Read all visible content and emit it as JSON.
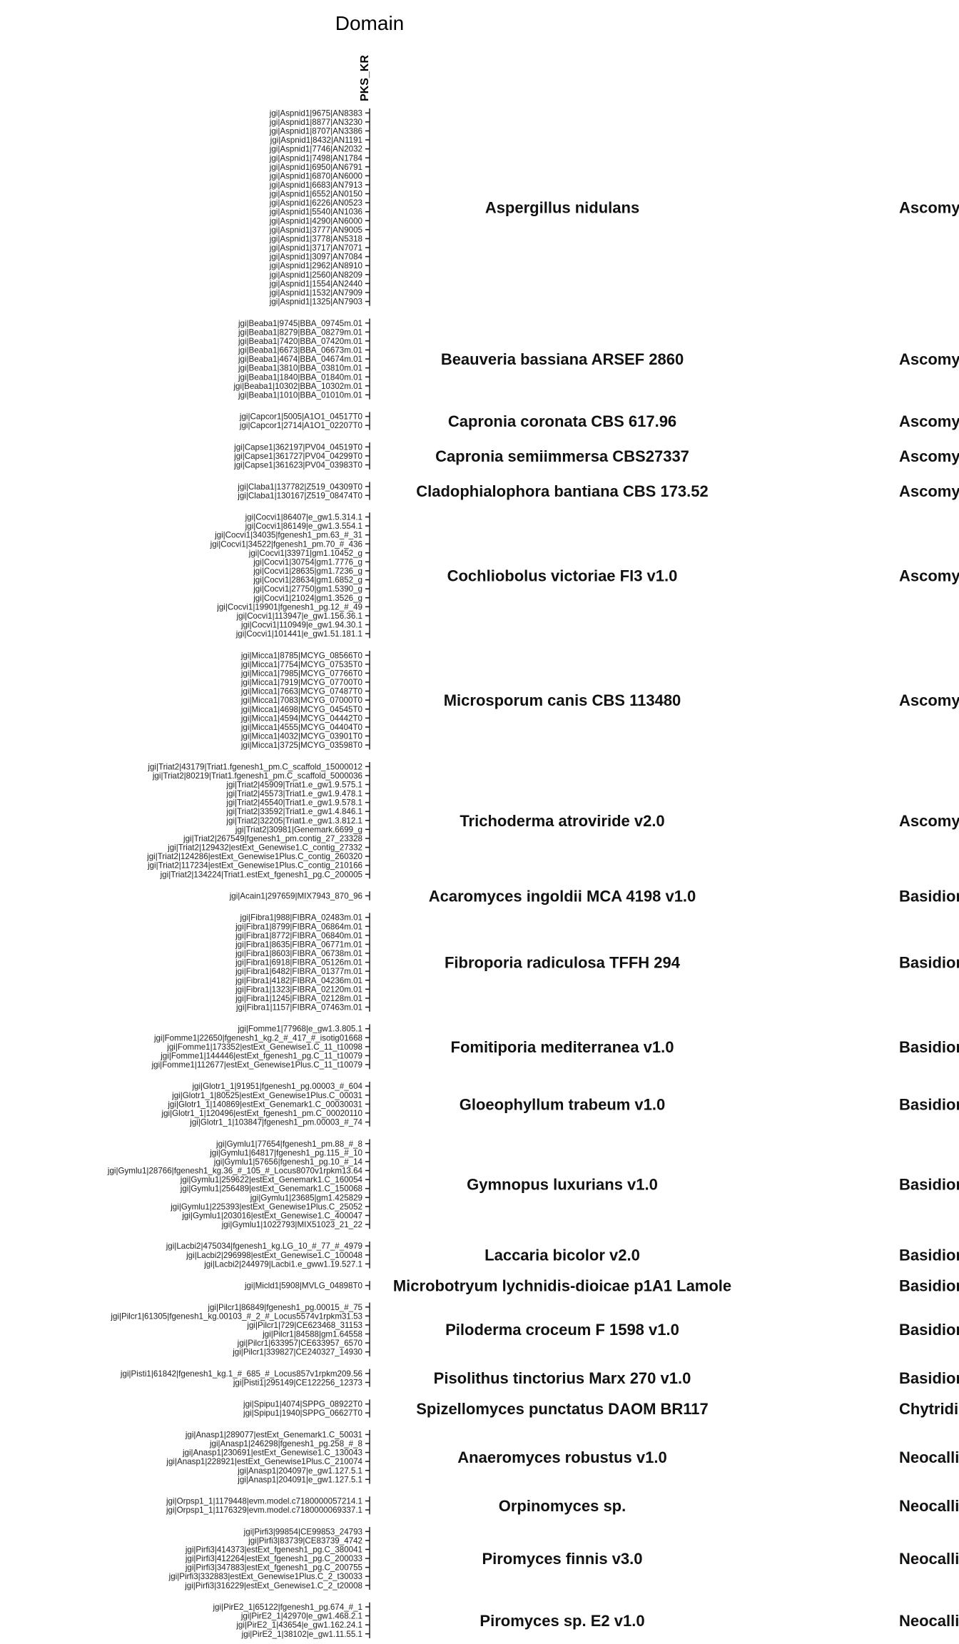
{
  "chart_data": {
    "type": "heatmap",
    "title": "Domain",
    "columns": [
      "PKS_KR"
    ],
    "groups": [
      {
        "organism": "Aspergillus nidulans",
        "phylum": "Ascomycota",
        "rows": [
          "jgi|Aspnid1|9675|AN8383",
          "jgi|Aspnid1|8877|AN3230",
          "jgi|Aspnid1|8707|AN3386",
          "jgi|Aspnid1|8432|AN1191",
          "jgi|Aspnid1|7746|AN2032",
          "jgi|Aspnid1|7498|AN1784",
          "jgi|Aspnid1|6950|AN6791",
          "jgi|Aspnid1|6870|AN6000",
          "jgi|Aspnid1|6683|AN7913",
          "jgi|Aspnid1|6552|AN0150",
          "jgi|Aspnid1|6226|AN0523",
          "jgi|Aspnid1|5540|AN1036",
          "jgi|Aspnid1|4290|AN6000",
          "jgi|Aspnid1|3777|AN9005",
          "jgi|Aspnid1|3778|AN5318",
          "jgi|Aspnid1|3717|AN7071",
          "jgi|Aspnid1|3097|AN7084",
          "jgi|Aspnid1|2962|AN8910",
          "jgi|Aspnid1|2560|AN8209",
          "jgi|Aspnid1|1554|AN2440",
          "jgi|Aspnid1|1532|AN7909",
          "jgi|Aspnid1|1325|AN7903"
        ]
      },
      {
        "organism": "Beauveria bassiana ARSEF 2860",
        "phylum": "Ascomycota",
        "rows": [
          "jgi|Beaba1|9745|BBA_09745m.01",
          "jgi|Beaba1|8279|BBA_08279m.01",
          "jgi|Beaba1|7420|BBA_07420m.01",
          "jgi|Beaba1|6673|BBA_06673m.01",
          "jgi|Beaba1|4674|BBA_04674m.01",
          "jgi|Beaba1|3810|BBA_03810m.01",
          "jgi|Beaba1|1840|BBA_01840m.01",
          "jgi|Beaba1|10302|BBA_10302m.01",
          "jgi|Beaba1|1010|BBA_01010m.01"
        ]
      },
      {
        "organism": "Capronia coronata CBS 617.96",
        "phylum": "Ascomycota",
        "rows": [
          "jgi|Capcor1|5005|A1O1_04517T0",
          "jgi|Capcor1|2714|A1O1_02207T0"
        ]
      },
      {
        "organism": "Capronia semiimmersa CBS27337",
        "phylum": "Ascomycota",
        "rows": [
          "jgi|Capse1|362197|PV04_04519T0",
          "jgi|Capse1|361727|PV04_04299T0",
          "jgi|Capse1|361623|PV04_03983T0"
        ]
      },
      {
        "organism": "Cladophialophora bantiana CBS 173.52",
        "phylum": "Ascomycota",
        "rows": [
          "jgi|Claba1|137782|Z519_04309T0",
          "jgi|Claba1|130167|Z519_08474T0"
        ]
      },
      {
        "organism": "Cochliobolus victoriae FI3 v1.0",
        "phylum": "Ascomycota",
        "rows": [
          "jgi|Cocvi1|86407|e_gw1.5.314.1",
          "jgi|Cocvi1|86149|e_gw1.3.554.1",
          "jgi|Cocvi1|34035|fgenesh1_pm.63_#_31",
          "jgi|Cocvi1|34522|fgenesh1_pm.70_#_436",
          "jgi|Cocvi1|33971|gm1.10452_g",
          "jgi|Cocvi1|30754|gm1.7776_g",
          "jgi|Cocvi1|28635|gm1.7236_g",
          "jgi|Cocvi1|28634|gm1.6852_g",
          "jgi|Cocvi1|27750|gm1.5390_g",
          "jgi|Cocvi1|21024|gm1.3526_g",
          "jgi|Cocvi1|19901|fgenesh1_pg.12_#_49",
          "jgi|Cocvi1|113947|e_gw1.156.36.1",
          "jgi|Cocvi1|110949|e_gw1.94.30.1",
          "jgi|Cocvi1|101441|e_gw1.51.181.1"
        ]
      },
      {
        "organism": "Microsporum canis CBS 113480",
        "phylum": "Ascomycota",
        "rows": [
          "jgi|Micca1|8785|MCYG_08566T0",
          "jgi|Micca1|7754|MCYG_07535T0",
          "jgi|Micca1|7985|MCYG_07766T0",
          "jgi|Micca1|7919|MCYG_07700T0",
          "jgi|Micca1|7663|MCYG_07487T0",
          "jgi|Micca1|7083|MCYG_07000T0",
          "jgi|Micca1|4698|MCYG_04545T0",
          "jgi|Micca1|4594|MCYG_04442T0",
          "jgi|Micca1|4555|MCYG_04404T0",
          "jgi|Micca1|4032|MCYG_03901T0",
          "jgi|Micca1|3725|MCYG_03598T0"
        ]
      },
      {
        "organism": "Trichoderma atroviride v2.0",
        "phylum": "Ascomycota",
        "rows": [
          "jgi|Triat2|43179|Triat1.fgenesh1_pm.C_scaffold_15000012",
          "jgi|Triat2|80219|Triat1.fgenesh1_pm.C_scaffold_5000036",
          "jgi|Triat2|45909|Triat1.e_gw1.9.575.1",
          "jgi|Triat2|45573|Triat1.e_gw1.9.478.1",
          "jgi|Triat2|45540|Triat1.e_gw1.9.578.1",
          "jgi|Triat2|33592|Triat1.e_gw1.4.846.1",
          "jgi|Triat2|32205|Triat1.e_gw1.3.812.1",
          "jgi|Triat2|30981|Genemark.6699_g",
          "jgi|Triat2|267549|fgenesh1_pm.contig_27_23328",
          "jgi|Triat2|129432|estExt_Genewise1.C_contig_27332",
          "jgi|Triat2|124286|estExt_Genewise1Plus.C_contig_260320",
          "jgi|Triat2|117234|estExt_Genewise1Plus.C_contig_210166",
          "jgi|Triat2|134224|Triat1.estExt_fgenesh1_pg.C_200005"
        ]
      },
      {
        "organism": "Acaromyces ingoldii MCA 4198 v1.0",
        "phylum": "Basidiomycota",
        "rows": [
          "jgi|Acain1|297659|MIX7943_870_96"
        ]
      },
      {
        "organism": "Fibroporia radiculosa TFFH 294",
        "phylum": "Basidiomycota",
        "rows": [
          "jgi|Fibra1|988|FIBRA_02483m.01",
          "jgi|Fibra1|8799|FIBRA_06864m.01",
          "jgi|Fibra1|8772|FIBRA_06840m.01",
          "jgi|Fibra1|8635|FIBRA_06771m.01",
          "jgi|Fibra1|8603|FIBRA_06738m.01",
          "jgi|Fibra1|6918|FIBRA_05126m.01",
          "jgi|Fibra1|6482|FIBRA_01377m.01",
          "jgi|Fibra1|4182|FIBRA_04236m.01",
          "jgi|Fibra1|1323|FIBRA_02120m.01",
          "jgi|Fibra1|1245|FIBRA_02128m.01",
          "jgi|Fibra1|1157|FIBRA_07463m.01"
        ]
      },
      {
        "organism": "Fomitiporia mediterranea v1.0",
        "phylum": "Basidiomycota",
        "rows": [
          "jgi|Fomme1|77968|e_gw1.3.805.1",
          "jgi|Fomme1|22650|fgenesh1_kg.2_#_417_#_isotig01668",
          "jgi|Fomme1|173352|estExt_Genewise1.C_11_t10098",
          "jgi|Fomme1|144446|estExt_fgenesh1_pg.C_11_t10079",
          "jgi|Fomme1|112677|estExt_Genewise1Plus.C_11_t10079"
        ]
      },
      {
        "organism": "Gloeophyllum trabeum v1.0",
        "phylum": "Basidiomycota",
        "rows": [
          "jgi|Glotr1_1|91951|fgenesh1_pg.00003_#_604",
          "jgi|Glotr1_1|80525|estExt_Genewise1Plus.C_00031",
          "jgi|Glotr1_1|140869|estExt_Genemark1.C_00030031",
          "jgi|Glotr1_1|120496|estExt_fgenesh1_pm.C_00020110",
          "jgi|Glotr1_1|103847|fgenesh1_pm.00003_#_74"
        ]
      },
      {
        "organism": "Gymnopus luxurians v1.0",
        "phylum": "Basidiomycota",
        "rows": [
          "jgi|Gymlu1|77654|fgenesh1_pm.88_#_8",
          "jgi|Gymlu1|64817|fgenesh1_pg.115_#_10",
          "jgi|Gymlu1|57656|fgenesh1_pg.10_#_14",
          "jgi|Gymlu1|28766|fgenesh1_kg.36_#_105_#_Locus8070v1rpkm13.64",
          "jgi|Gymlu1|259622|estExt_Genemark1.C_160054",
          "jgi|Gymlu1|256489|estExt_Genemark1.C_150068",
          "jgi|Gymlu1|23685|gm1.425829",
          "jgi|Gymlu1|225393|estExt_Genewise1Plus.C_25052",
          "jgi|Gymlu1|203016|estExt_Genewise1.C_400047",
          "jgi|Gymlu1|1022793|MIX51023_21_22"
        ]
      },
      {
        "organism": "Laccaria bicolor v2.0",
        "phylum": "Basidiomycota",
        "rows": [
          "jgi|Lacbi2|475034|fgenesh1_kg.LG_10_#_77_#_4979",
          "jgi|Lacbi2|296998|estExt_Genewise1.C_100048",
          "jgi|Lacbi2|244979|Lacbi1.e_gww1.19.527.1"
        ]
      },
      {
        "organism": "Microbotryum lychnidis-dioicae p1A1 Lamole",
        "phylum": "Basidiomycota",
        "rows": [
          "jgi|Micld1|5908|MVLG_04898T0"
        ]
      },
      {
        "organism": "Piloderma croceum F 1598 v1.0",
        "phylum": "Basidiomycota",
        "rows": [
          "jgi|Pilcr1|86849|fgenesh1_pg.00015_#_75",
          "jgi|Pilcr1|61305|fgenesh1_kg.00103_#_2_#_Locus5574v1rpkm31.53",
          "jgi|Pilcr1|729|CE623468_31153",
          "jgi|Pilcr1|84588|gm1.64558",
          "jgi|Pilcr1|633957|CE633957_6570",
          "jgi|Pilcr1|339827|CE240327_14930"
        ]
      },
      {
        "organism": "Pisolithus tinctorius Marx 270 v1.0",
        "phylum": "Basidiomycota",
        "rows": [
          "jgi|Pisti1|61842|fgenesh1_kg.1_#_685_#_Locus857v1rpkm209.56",
          "jgi|Pisti1|295149|CE122256_12373"
        ]
      },
      {
        "organism": "Spizellomyces punctatus DAOM BR117",
        "phylum": "Chytridiomycota",
        "rows": [
          "jgi|Spipu1|4074|SPPG_08922T0",
          "jgi|Spipu1|1940|SPPG_06627T0"
        ]
      },
      {
        "organism": "Anaeromyces robustus v1.0",
        "phylum": "Neocallimastigomycota",
        "rows": [
          "jgi|Anasp1|289077|estExt_Genemark1.C_50031",
          "jgi|Anasp1|246298|fgenesh1_pg.258_#_8",
          "jgi|Anasp1|230691|estExt_Genewise1.C_130043",
          "jgi|Anasp1|228921|estExt_Genewise1Plus.C_210074",
          "jgi|Anasp1|204097|e_gw1.127.5.1",
          "jgi|Anasp1|204091|e_gw1.127.5.1"
        ]
      },
      {
        "organism": "Orpinomyces sp.",
        "phylum": "Neocallimastigomycota",
        "rows": [
          "jgi|Orpsp1_1|1179448|evm.model.c7180000057214.1",
          "jgi|Orpsp1_1|1176329|evm.model.c7180000069337.1"
        ]
      },
      {
        "organism": "Piromyces finnis v3.0",
        "phylum": "Neocallimastigomycota",
        "rows": [
          "jgi|Pirfi3|99854|CE99853_24793",
          "jgi|Pirfi3|83739|CE83739_4742",
          "jgi|Pirfi3|414373|estExt_fgenesh1_pg.C_380041",
          "jgi|Pirfi3|412264|estExt_fgenesh1_pg.C_200033",
          "jgi|Pirfi3|347883|estExt_fgenesh1_pg.C_200755",
          "jgi|Pirfi3|332883|estExt_Genewise1Plus.C_2_t30033",
          "jgi|Pirfi3|316229|estExt_Genewise1.C_2_t20008"
        ]
      },
      {
        "organism": "Piromyces sp. E2 v1.0",
        "phylum": "Neocallimastigomycota",
        "rows": [
          "jgi|PirE2_1|65122|fgenesh1_pg.674_#_1",
          "jgi|PirE2_1|42970|e_gw1.468.2.1",
          "jgi|PirE2_1|43654|e_gw1.162.24.1",
          "jgi|PirE2_1|38102|e_gw1.11.55.1"
        ]
      }
    ]
  }
}
